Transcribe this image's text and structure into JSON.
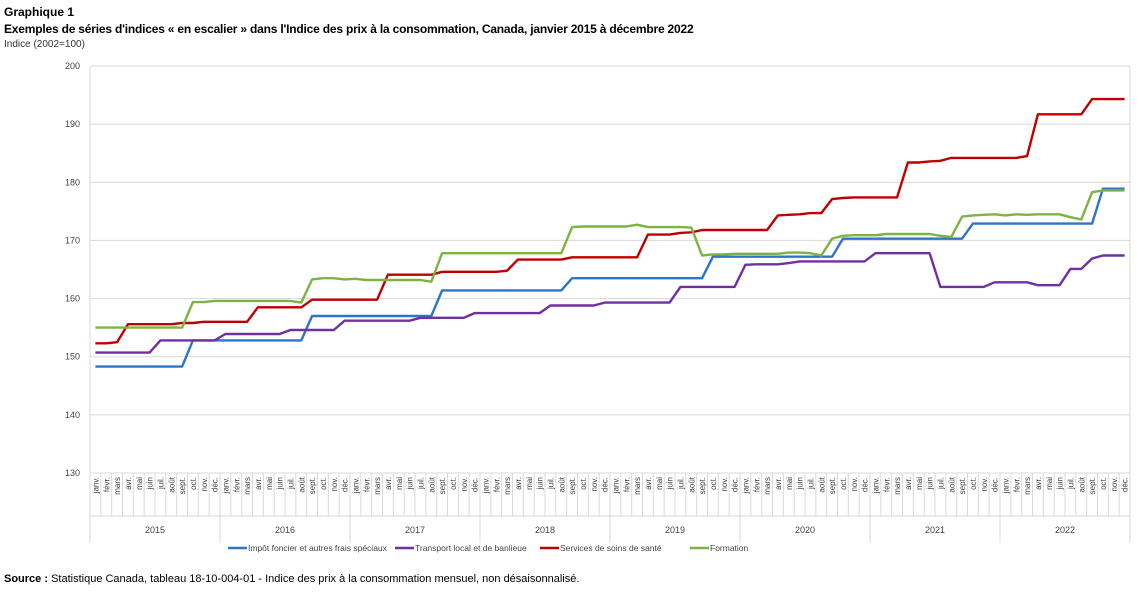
{
  "header": {
    "graph_number": "Graphique 1",
    "title": "Exemples de séries d'indices « en escalier » dans l'Indice des prix à la consommation, Canada, janvier 2015 à décembre 2022",
    "units": "Indice (2002=100)"
  },
  "footer": {
    "source_label": "Source :",
    "source_text": " Statistique Canada, tableau 18-10-004-01 - Indice des prix à la consommation mensuel, non désaisonnalisé."
  },
  "chart_data": {
    "type": "line",
    "title": "Exemples de séries d'indices « en escalier » dans l'Indice des prix à la consommation, Canada, janvier 2015 à décembre 2022",
    "ylabel": "Indice (2002=100)",
    "xlabel": "",
    "ylim": [
      130,
      200
    ],
    "yticks": [
      130,
      140,
      150,
      160,
      170,
      180,
      190,
      200
    ],
    "grid": true,
    "legend_position": "bottom",
    "months": [
      "janv.",
      "févr.",
      "mars",
      "avr.",
      "mai",
      "juin",
      "juil.",
      "août",
      "sept.",
      "oct.",
      "nov.",
      "déc."
    ],
    "years": [
      "2015",
      "2016",
      "2017",
      "2018",
      "2019",
      "2020",
      "2021",
      "2022"
    ],
    "series": [
      {
        "name": "Impôt foncier et autres frais spéciaux",
        "color": "#2e75c6",
        "values": [
          148.3,
          148.3,
          148.3,
          148.3,
          148.3,
          148.3,
          148.3,
          148.3,
          148.3,
          152.8,
          152.8,
          152.8,
          152.8,
          152.8,
          152.8,
          152.8,
          152.8,
          152.8,
          152.8,
          152.8,
          157.0,
          157.0,
          157.0,
          157.0,
          157.0,
          157.0,
          157.0,
          157.0,
          157.0,
          157.0,
          157.0,
          157.0,
          161.4,
          161.4,
          161.4,
          161.4,
          161.4,
          161.4,
          161.4,
          161.4,
          161.4,
          161.4,
          161.4,
          161.4,
          163.5,
          163.5,
          163.5,
          163.5,
          163.5,
          163.5,
          163.5,
          163.5,
          163.5,
          163.5,
          163.5,
          163.5,
          163.5,
          167.2,
          167.2,
          167.2,
          167.2,
          167.2,
          167.2,
          167.2,
          167.2,
          167.2,
          167.2,
          167.2,
          167.2,
          170.3,
          170.3,
          170.3,
          170.3,
          170.3,
          170.3,
          170.3,
          170.3,
          170.3,
          170.3,
          170.3,
          170.3,
          172.9,
          172.9,
          172.9,
          172.9,
          172.9,
          172.9,
          172.9,
          172.9,
          172.9,
          172.9,
          172.9,
          172.9,
          178.9,
          178.9,
          178.9
        ]
      },
      {
        "name": "Transport local et de banlieue",
        "color": "#7030a0",
        "values": [
          150.7,
          150.7,
          150.7,
          150.7,
          150.7,
          150.7,
          152.8,
          152.8,
          152.8,
          152.8,
          152.8,
          152.8,
          153.9,
          153.9,
          153.9,
          153.9,
          153.9,
          153.9,
          154.6,
          154.6,
          154.6,
          154.6,
          154.6,
          156.2,
          156.2,
          156.2,
          156.2,
          156.2,
          156.2,
          156.2,
          156.7,
          156.7,
          156.7,
          156.7,
          156.7,
          157.5,
          157.5,
          157.5,
          157.5,
          157.5,
          157.5,
          157.5,
          158.8,
          158.8,
          158.8,
          158.8,
          158.8,
          159.3,
          159.3,
          159.3,
          159.3,
          159.3,
          159.3,
          159.3,
          162.0,
          162.0,
          162.0,
          162.0,
          162.0,
          162.0,
          165.8,
          165.9,
          165.9,
          165.9,
          166.1,
          166.4,
          166.4,
          166.4,
          166.4,
          166.4,
          166.4,
          166.4,
          167.8,
          167.8,
          167.8,
          167.8,
          167.8,
          167.8,
          162.0,
          162.0,
          162.0,
          162.0,
          162.0,
          162.8,
          162.8,
          162.8,
          162.8,
          162.3,
          162.3,
          162.3,
          165.1,
          165.1,
          166.9,
          167.4,
          167.4,
          167.4
        ]
      },
      {
        "name": "Services de soins de santé",
        "color": "#c00000",
        "values": [
          152.3,
          152.3,
          152.5,
          155.6,
          155.6,
          155.6,
          155.6,
          155.6,
          155.8,
          155.8,
          156.0,
          156.0,
          156.0,
          156.0,
          156.0,
          158.5,
          158.5,
          158.5,
          158.5,
          158.5,
          159.8,
          159.8,
          159.8,
          159.8,
          159.8,
          159.8,
          159.8,
          164.1,
          164.1,
          164.1,
          164.1,
          164.1,
          164.6,
          164.6,
          164.6,
          164.6,
          164.6,
          164.6,
          164.8,
          166.7,
          166.7,
          166.7,
          166.7,
          166.7,
          167.1,
          167.1,
          167.1,
          167.1,
          167.1,
          167.1,
          167.1,
          171.0,
          171.0,
          171.0,
          171.3,
          171.4,
          171.8,
          171.8,
          171.8,
          171.8,
          171.8,
          171.8,
          171.8,
          174.3,
          174.4,
          174.5,
          174.7,
          174.7,
          177.1,
          177.3,
          177.4,
          177.4,
          177.4,
          177.4,
          177.4,
          183.4,
          183.4,
          183.6,
          183.7,
          184.2,
          184.2,
          184.2,
          184.2,
          184.2,
          184.2,
          184.2,
          184.5,
          191.7,
          191.7,
          191.7,
          191.7,
          191.7,
          194.3,
          194.3,
          194.3,
          194.3
        ]
      },
      {
        "name": "Formation",
        "color": "#7cb342",
        "values": [
          155.0,
          155.0,
          155.0,
          155.0,
          155.0,
          155.0,
          155.0,
          155.0,
          155.0,
          159.4,
          159.4,
          159.6,
          159.6,
          159.6,
          159.6,
          159.6,
          159.6,
          159.6,
          159.6,
          159.3,
          163.3,
          163.5,
          163.5,
          163.3,
          163.4,
          163.2,
          163.2,
          163.2,
          163.2,
          163.2,
          163.2,
          162.9,
          167.8,
          167.8,
          167.8,
          167.8,
          167.8,
          167.8,
          167.8,
          167.8,
          167.8,
          167.8,
          167.8,
          167.8,
          172.3,
          172.4,
          172.4,
          172.4,
          172.4,
          172.4,
          172.7,
          172.3,
          172.3,
          172.3,
          172.3,
          172.2,
          167.4,
          167.6,
          167.6,
          167.7,
          167.7,
          167.7,
          167.7,
          167.7,
          167.9,
          167.9,
          167.8,
          167.4,
          170.3,
          170.8,
          170.9,
          170.9,
          170.9,
          171.1,
          171.1,
          171.1,
          171.1,
          171.1,
          170.8,
          170.6,
          174.1,
          174.3,
          174.4,
          174.5,
          174.3,
          174.5,
          174.4,
          174.5,
          174.5,
          174.5,
          174.0,
          173.6,
          178.3,
          178.6,
          178.6,
          178.6
        ]
      }
    ]
  }
}
